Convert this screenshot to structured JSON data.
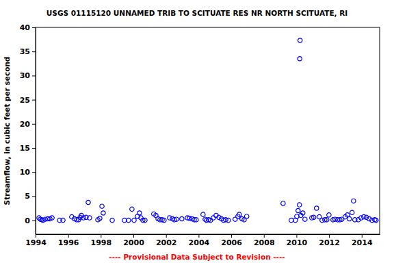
{
  "chart_data": {
    "type": "scatter",
    "title": "USGS 01115120 UNNAMED TRIB TO SCITUATE RES NR NORTH SCITUATE, RI",
    "y_label": "Streamflow, in cubic feet per second",
    "annotation": "---- Provisional Data Subject to Revision ----",
    "x": [
      1994.21,
      1994.29,
      1994.38,
      1994.46,
      1994.59,
      1994.75,
      1994.88,
      1995.01,
      1995.47,
      1995.68,
      1996.22,
      1996.39,
      1996.52,
      1996.64,
      1996.73,
      1996.81,
      1996.94,
      1997.1,
      1997.23,
      1997.31,
      1997.82,
      1997.94,
      1998.07,
      1998.15,
      1998.7,
      1999.45,
      1999.7,
      1999.91,
      2000.04,
      2000.25,
      2000.37,
      2000.46,
      2000.58,
      2000.71,
      2001.25,
      2001.38,
      2001.51,
      2001.63,
      2001.76,
      2001.88,
      2002.22,
      2002.39,
      2002.51,
      2002.64,
      2002.97,
      2003.31,
      2003.43,
      2003.6,
      2003.73,
      2003.85,
      2004.27,
      2004.4,
      2004.48,
      2004.61,
      2004.73,
      2004.9,
      2005.07,
      2005.24,
      2005.4,
      2005.53,
      2005.66,
      2005.82,
      2006.24,
      2006.41,
      2006.49,
      2006.66,
      2006.79,
      2006.95,
      2009.18,
      2009.68,
      2009.93,
      2010.02,
      2010.1,
      2010.18,
      2010.27,
      2010.22,
      2010.2,
      2010.39,
      2010.52,
      2010.94,
      2011.06,
      2011.23,
      2011.4,
      2011.57,
      2011.74,
      2011.86,
      2011.99,
      2012.24,
      2012.36,
      2012.53,
      2012.66,
      2012.78,
      2012.99,
      2013.12,
      2013.24,
      2013.41,
      2013.5,
      2013.58,
      2013.79,
      2013.96,
      2014.13,
      2014.29,
      2014.46,
      2014.63,
      2014.8,
      2014.88
    ],
    "series": [
      {
        "color": "#0000ff",
        "marker": "circle",
        "values": [
          0.5,
          0.2,
          0.1,
          0.0,
          0.2,
          0.3,
          0.3,
          0.5,
          0.0,
          0.0,
          0.7,
          0.3,
          0.1,
          0.1,
          0.6,
          1.0,
          0.5,
          0.6,
          3.7,
          0.5,
          0.1,
          0.4,
          2.9,
          1.5,
          0.0,
          0.0,
          0.0,
          2.3,
          0.0,
          0.8,
          1.5,
          0.5,
          0.0,
          0.0,
          1.3,
          1.0,
          0.3,
          0.1,
          0.1,
          0.0,
          0.5,
          0.3,
          0.1,
          0.2,
          0.3,
          0.5,
          0.4,
          0.3,
          0.1,
          0.1,
          1.2,
          0.2,
          0.0,
          0.1,
          0.0,
          0.5,
          1.0,
          0.6,
          0.3,
          0.0,
          0.1,
          0.0,
          0.2,
          0.8,
          1.2,
          0.3,
          0.1,
          0.8,
          3.5,
          0.0,
          0.0,
          0.8,
          2.0,
          3.2,
          1.0,
          37.3,
          33.5,
          1.5,
          0.2,
          0.5,
          0.6,
          2.5,
          0.7,
          0.0,
          0.1,
          0.1,
          1.1,
          0.1,
          0.2,
          0.1,
          0.1,
          0.2,
          0.7,
          1.1,
          0.3,
          1.6,
          4.0,
          0.1,
          0.1,
          0.5,
          0.7,
          0.6,
          0.3,
          0.0,
          0.1,
          0.0
        ]
      }
    ],
    "xlim": [
      1994,
      2015.1
    ],
    "xticks": [
      1994,
      1996,
      1998,
      2000,
      2002,
      2004,
      2006,
      2008,
      2010,
      2012,
      2014
    ],
    "ylim": [
      -2.9,
      40
    ],
    "yticks": [
      0,
      5,
      10,
      15,
      20,
      25,
      30,
      35,
      40
    ],
    "grid": false
  }
}
